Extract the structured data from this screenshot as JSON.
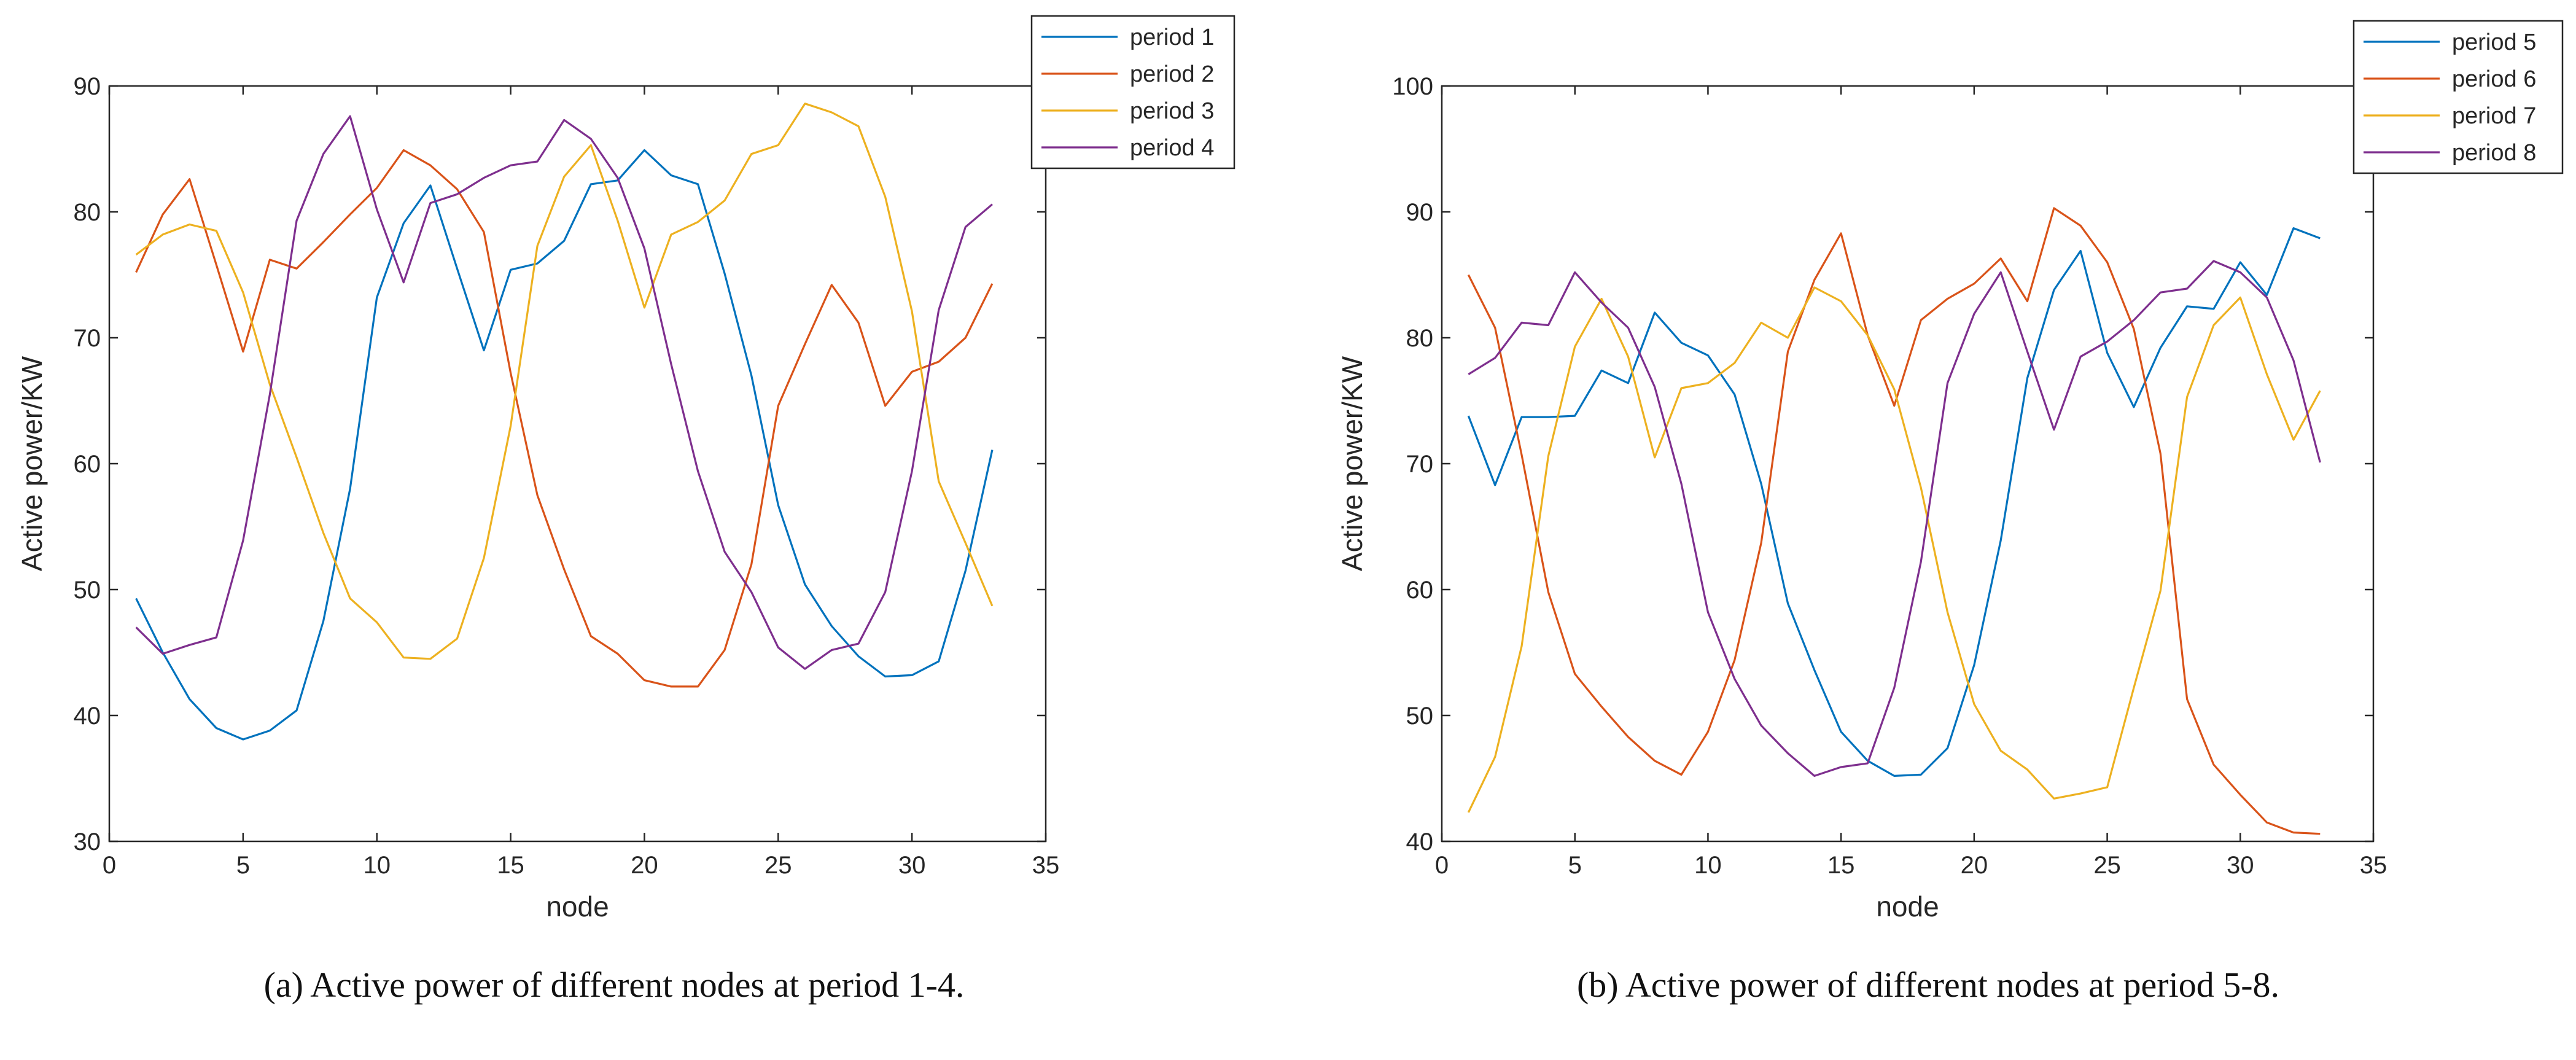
{
  "chart_data": [
    {
      "type": "line",
      "caption": "(a)  Active power of different nodes at period 1-4.",
      "xlabel": "node",
      "ylabel": "Active power/KW",
      "xlim": [
        0,
        35
      ],
      "ylim": [
        30,
        90
      ],
      "xticks": [
        "0",
        "5",
        "10",
        "15",
        "20",
        "25",
        "30",
        "35"
      ],
      "yticks": [
        "30",
        "40",
        "50",
        "60",
        "70",
        "80",
        "90"
      ],
      "grid": false,
      "legend_position": "top-right-outside",
      "x": [
        1,
        2,
        3,
        4,
        5,
        6,
        7,
        8,
        9,
        10,
        11,
        12,
        13,
        14,
        15,
        16,
        17,
        18,
        19,
        20,
        21,
        22,
        23,
        24,
        25,
        26,
        27,
        28,
        29,
        30,
        31,
        32,
        33
      ],
      "series": [
        {
          "name": "period 1",
          "color": "#0072BD",
          "values": [
            49.3,
            45.0,
            41.3,
            39.0,
            38.1,
            38.8,
            40.4,
            47.5,
            58.0,
            73.2,
            79.1,
            82.1,
            75.5,
            69.0,
            75.4,
            75.9,
            77.7,
            82.2,
            82.5,
            84.9,
            82.9,
            82.2,
            75.1,
            67.0,
            56.7,
            50.4,
            47.1,
            44.7,
            43.1,
            43.2,
            44.3,
            51.5,
            61.1
          ]
        },
        {
          "name": "period 2",
          "color": "#D95319",
          "values": [
            75.2,
            79.8,
            82.6,
            75.8,
            68.9,
            76.2,
            75.5,
            77.6,
            79.8,
            81.9,
            84.9,
            83.7,
            81.8,
            78.4,
            67.2,
            57.5,
            51.6,
            46.3,
            44.9,
            42.8,
            42.3,
            42.3,
            45.2,
            52.0,
            64.6,
            69.5,
            74.2,
            71.2,
            64.6,
            67.3,
            68.1,
            70.0,
            74.3
          ]
        },
        {
          "name": "period 3",
          "color": "#EDB120",
          "values": [
            76.6,
            78.2,
            79.0,
            78.5,
            73.6,
            66.3,
            60.5,
            54.5,
            49.3,
            47.4,
            44.6,
            44.5,
            46.1,
            52.5,
            63.0,
            77.3,
            82.8,
            85.3,
            79.3,
            72.4,
            78.2,
            79.2,
            80.9,
            84.6,
            85.3,
            88.6,
            87.9,
            86.8,
            81.2,
            72.1,
            58.6,
            53.7,
            48.7
          ]
        },
        {
          "name": "period 4",
          "color": "#7E2F8E",
          "values": [
            47.0,
            44.9,
            45.6,
            46.2,
            53.9,
            65.5,
            79.3,
            84.6,
            87.6,
            80.2,
            74.4,
            80.7,
            81.4,
            82.7,
            83.7,
            84.0,
            87.3,
            85.8,
            82.7,
            77.1,
            67.9,
            59.4,
            53.0,
            49.8,
            45.4,
            43.7,
            45.2,
            45.7,
            49.8,
            59.4,
            72.2,
            78.8,
            80.6
          ]
        }
      ]
    },
    {
      "type": "line",
      "caption": "(b)  Active power of different nodes at period 5-8.",
      "xlabel": "node",
      "ylabel": "Active power/KW",
      "xlim": [
        0,
        35
      ],
      "ylim": [
        40,
        100
      ],
      "xticks": [
        "0",
        "5",
        "10",
        "15",
        "20",
        "25",
        "30",
        "35"
      ],
      "yticks": [
        "40",
        "50",
        "60",
        "70",
        "80",
        "90",
        "100"
      ],
      "grid": false,
      "legend_position": "top-right-outside",
      "x": [
        1,
        2,
        3,
        4,
        5,
        6,
        7,
        8,
        9,
        10,
        11,
        12,
        13,
        14,
        15,
        16,
        17,
        18,
        19,
        20,
        21,
        22,
        23,
        24,
        25,
        26,
        27,
        28,
        29,
        30,
        31,
        32,
        33
      ],
      "series": [
        {
          "name": "period 5",
          "color": "#0072BD",
          "values": [
            73.8,
            68.3,
            73.7,
            73.7,
            73.8,
            77.4,
            76.4,
            82.0,
            79.6,
            78.6,
            75.5,
            68.4,
            58.9,
            53.6,
            48.7,
            46.4,
            45.2,
            45.3,
            47.4,
            54.0,
            63.9,
            76.8,
            83.8,
            86.9,
            78.8,
            74.5,
            79.2,
            82.5,
            82.3,
            86.0,
            83.4,
            88.7,
            87.9
          ]
        },
        {
          "name": "period 6",
          "color": "#D95319",
          "values": [
            85.0,
            80.8,
            70.7,
            59.8,
            53.3,
            50.7,
            48.3,
            46.4,
            45.3,
            48.7,
            54.4,
            63.7,
            78.9,
            84.6,
            88.3,
            80.2,
            74.6,
            81.4,
            83.1,
            84.3,
            86.3,
            82.9,
            90.3,
            88.9,
            86.0,
            80.7,
            70.8,
            51.3,
            46.1,
            43.7,
            41.5,
            40.7,
            40.6
          ]
        },
        {
          "name": "period 7",
          "color": "#EDB120",
          "values": [
            42.3,
            46.7,
            55.5,
            70.6,
            79.3,
            83.1,
            78.5,
            70.5,
            76.0,
            76.4,
            78.0,
            81.2,
            80.0,
            84.0,
            82.9,
            80.2,
            75.9,
            68.1,
            58.2,
            50.9,
            47.2,
            45.7,
            43.4,
            43.8,
            44.3,
            52.2,
            59.9,
            75.3,
            81.0,
            83.2,
            77.1,
            71.9,
            75.8
          ]
        },
        {
          "name": "period 8",
          "color": "#7E2F8E",
          "values": [
            77.1,
            78.4,
            81.2,
            81.0,
            85.2,
            82.8,
            80.8,
            76.1,
            68.4,
            58.2,
            52.9,
            49.2,
            47.0,
            45.2,
            45.9,
            46.2,
            52.2,
            62.2,
            76.4,
            81.9,
            85.2,
            78.9,
            72.7,
            78.5,
            79.7,
            81.4,
            83.6,
            83.9,
            86.1,
            85.2,
            83.2,
            78.2,
            70.1
          ]
        }
      ]
    }
  ]
}
